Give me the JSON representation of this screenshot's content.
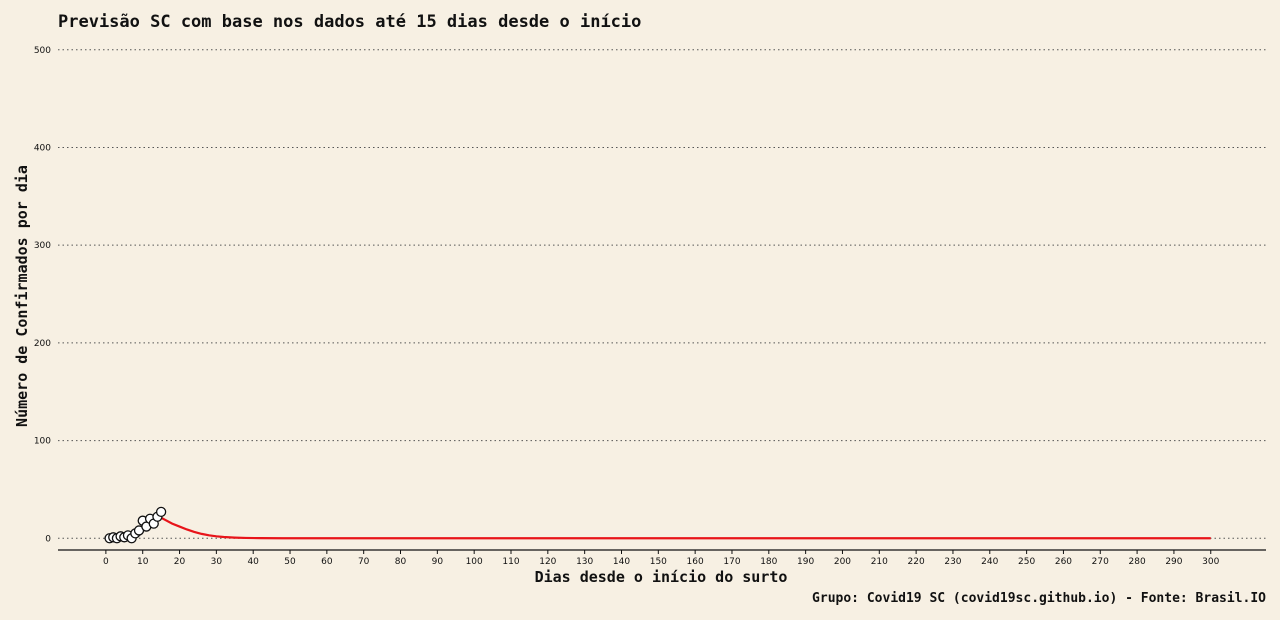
{
  "chart_data": {
    "type": "line",
    "title": "Previsão SC com base nos dados até 15 dias desde o início",
    "xlabel": "Dias desde o início do surto",
    "ylabel": "Número de Confirmados por dia",
    "caption": "Grupo: Covid19 SC (covid19sc.github.io) - Fonte: Brasil.IO",
    "xlim": [
      -13,
      315
    ],
    "ylim": [
      -12,
      510
    ],
    "x_ticks": [
      0,
      10,
      20,
      30,
      40,
      50,
      60,
      70,
      80,
      90,
      100,
      110,
      120,
      130,
      140,
      150,
      160,
      170,
      180,
      190,
      200,
      210,
      220,
      230,
      240,
      250,
      260,
      270,
      280,
      290,
      300
    ],
    "y_ticks": [
      0,
      100,
      200,
      300,
      400,
      500
    ],
    "grid": "horizontal-dotted",
    "observed": {
      "x": [
        1,
        2,
        3,
        4,
        5,
        6,
        7,
        8,
        9,
        10,
        11,
        12,
        13,
        14,
        15
      ],
      "y": [
        0,
        1,
        0,
        2,
        1,
        3,
        0,
        5,
        8,
        18,
        12,
        20,
        15,
        22,
        27
      ]
    },
    "forecast": {
      "color": "#e8141a",
      "x": [
        14,
        15,
        16,
        18,
        20,
        22,
        24,
        26,
        28,
        30,
        32,
        35,
        38,
        42,
        48,
        60,
        100,
        150,
        200,
        250,
        300
      ],
      "y": [
        23,
        21,
        19,
        15,
        12,
        9,
        6.5,
        4.5,
        3,
        2,
        1.3,
        0.7,
        0.35,
        0.15,
        0.05,
        0,
        0,
        0,
        0,
        0,
        0
      ]
    }
  }
}
